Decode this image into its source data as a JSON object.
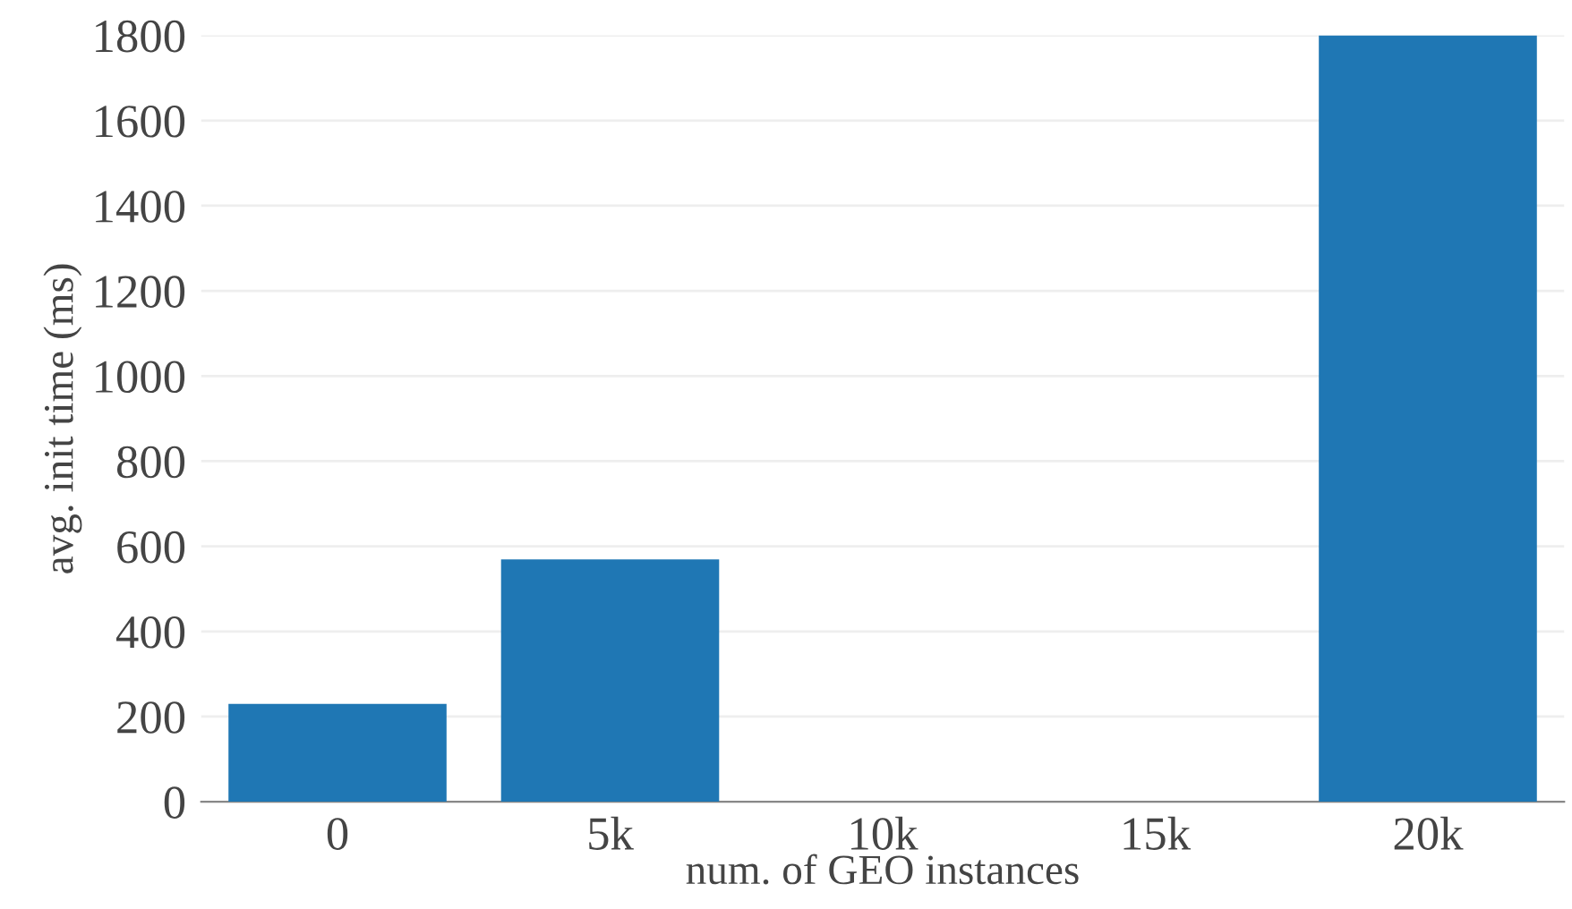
{
  "chart_data": {
    "type": "bar",
    "xlabel": "num. of GEO instances",
    "ylabel": "avg. init time (ms)",
    "categories": [
      "0",
      "5k",
      "10k",
      "15k",
      "20k"
    ],
    "values": [
      230,
      569,
      null,
      null,
      1800
    ],
    "color": "#1f77b4",
    "ylim": [
      0,
      1800
    ],
    "yticks": [
      0,
      200,
      400,
      600,
      800,
      1000,
      1200,
      1400,
      1600,
      1800
    ],
    "grid": "y"
  }
}
